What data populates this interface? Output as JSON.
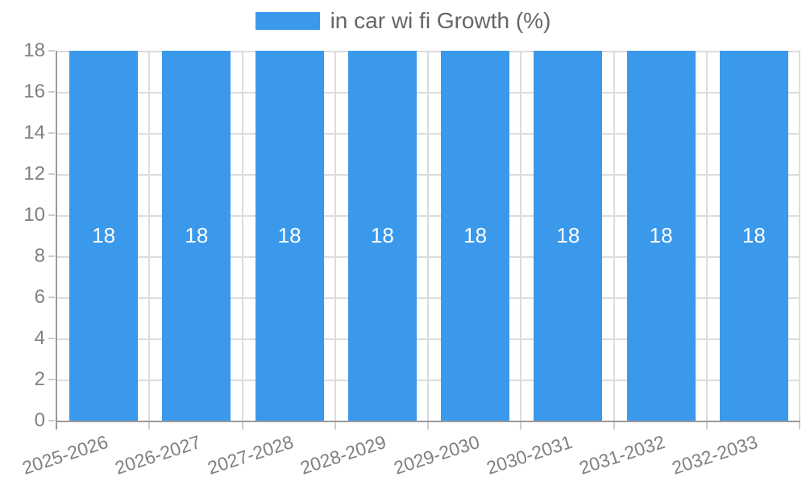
{
  "legend": {
    "position": "top",
    "label": "in car wi fi Growth (%)"
  },
  "chart_data": {
    "type": "bar",
    "title": "",
    "xlabel": "",
    "ylabel": "",
    "categories": [
      "2025-2026",
      "2026-2027",
      "2027-2028",
      "2028-2029",
      "2029-2030",
      "2030-2031",
      "2031-2032",
      "2032-2033"
    ],
    "series": [
      {
        "name": "in car wi fi Growth (%)",
        "values": [
          18,
          18,
          18,
          18,
          18,
          18,
          18,
          18
        ]
      }
    ],
    "ylim": [
      0,
      18
    ],
    "yticks": [
      0,
      2,
      4,
      6,
      8,
      10,
      12,
      14,
      16,
      18
    ],
    "grid": true,
    "legend_position": "top",
    "bar_value_labels_visible": true,
    "colors": {
      "bar": "#3b99ec",
      "bar_value_text": "#ffffff",
      "axis_line": "#9a9a9a",
      "gridline": "#dcdcdc",
      "tick_mark": "#cccccc",
      "tick_label": "#808080",
      "legend_text": "#666666",
      "background": "#ffffff"
    }
  }
}
